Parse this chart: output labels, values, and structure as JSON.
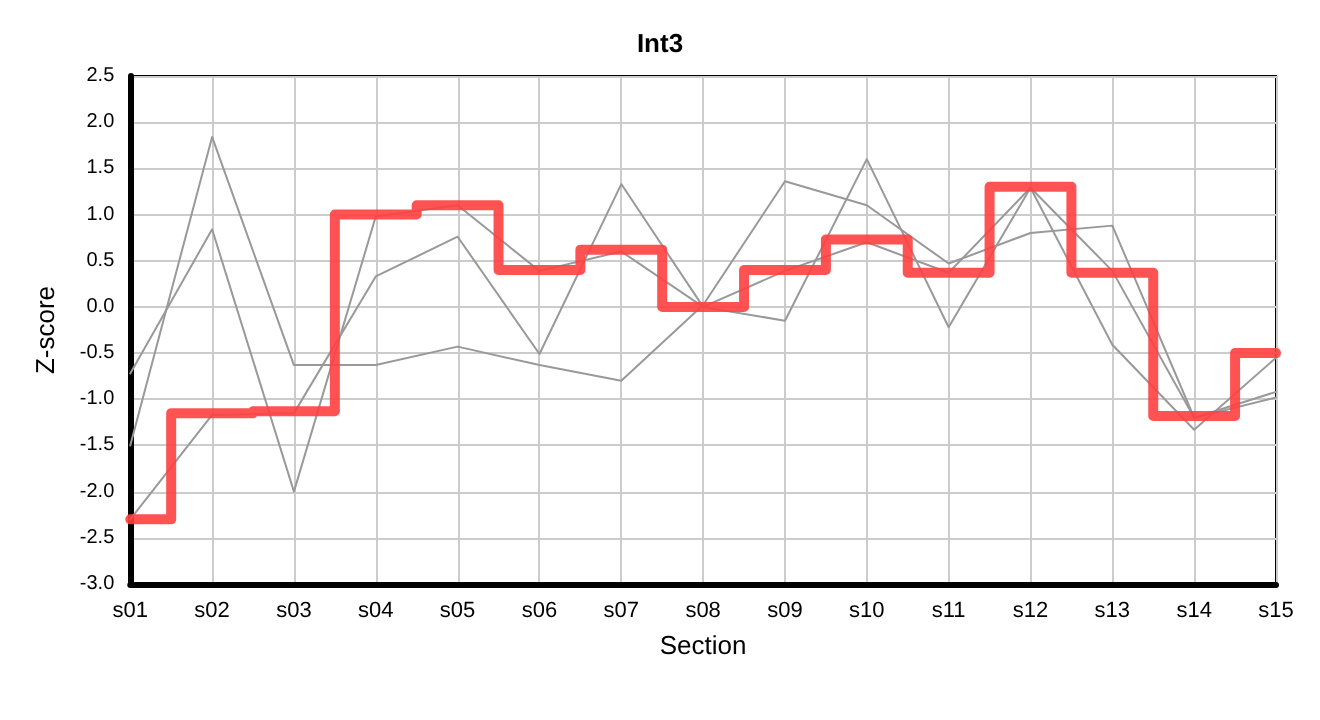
{
  "chart_data": {
    "type": "line",
    "title": "Int3",
    "xlabel": "Section",
    "ylabel": "Z-score",
    "categories": [
      "s01",
      "s02",
      "s03",
      "s04",
      "s05",
      "s06",
      "s07",
      "s08",
      "s09",
      "s10",
      "s11",
      "s12",
      "s13",
      "s14",
      "s15"
    ],
    "series": [
      {
        "color": "#999999",
        "values": [
          -1.5,
          1.84,
          -0.63,
          -0.63,
          -0.43,
          -0.63,
          -0.8,
          0.02,
          1.36,
          1.1,
          0.47,
          0.8,
          0.88,
          -1.2,
          -0.92
        ]
      },
      {
        "color": "#999999",
        "values": [
          -0.72,
          0.84,
          -2.0,
          0.98,
          1.1,
          0.39,
          0.6,
          0,
          -0.15,
          1.6,
          -0.22,
          1.29,
          -0.41,
          -1.33,
          -0.55
        ]
      },
      {
        "color": "#999999",
        "values": [
          -2.3,
          -1.17,
          -1.15,
          0.33,
          0.76,
          -0.51,
          1.33,
          0,
          0.39,
          0.7,
          0.37,
          1.29,
          0.39,
          -1.2,
          -0.98
        ]
      },
      {
        "type": "step",
        "color": "#ff4040",
        "values": [
          -2.3,
          -1.15,
          -1.13,
          1.0,
          1.1,
          0.4,
          0.62,
          0.0,
          0.4,
          0.73,
          0.37,
          1.3,
          0.37,
          -1.18,
          -0.5
        ]
      }
    ],
    "ylim": [
      -3,
      2.5
    ],
    "yticks": [
      {
        "value": -3,
        "label": "-3.0"
      },
      {
        "value": -2.5,
        "label": "-2.5"
      },
      {
        "value": -2,
        "label": "-2.0"
      },
      {
        "value": -1.5,
        "label": "-1.5"
      },
      {
        "value": -1,
        "label": "-1.0"
      },
      {
        "value": -0.5,
        "label": "-0.5"
      },
      {
        "value": 0,
        "label": "0.0"
      },
      {
        "value": 0.5,
        "label": "0.5"
      },
      {
        "value": 1,
        "label": "1.0"
      },
      {
        "value": 1.5,
        "label": "1.5"
      },
      {
        "value": 2,
        "label": "2.0"
      },
      {
        "value": 2.5,
        "label": "2.5"
      }
    ],
    "grid": true,
    "marker": "none",
    "line_style": "solid"
  }
}
